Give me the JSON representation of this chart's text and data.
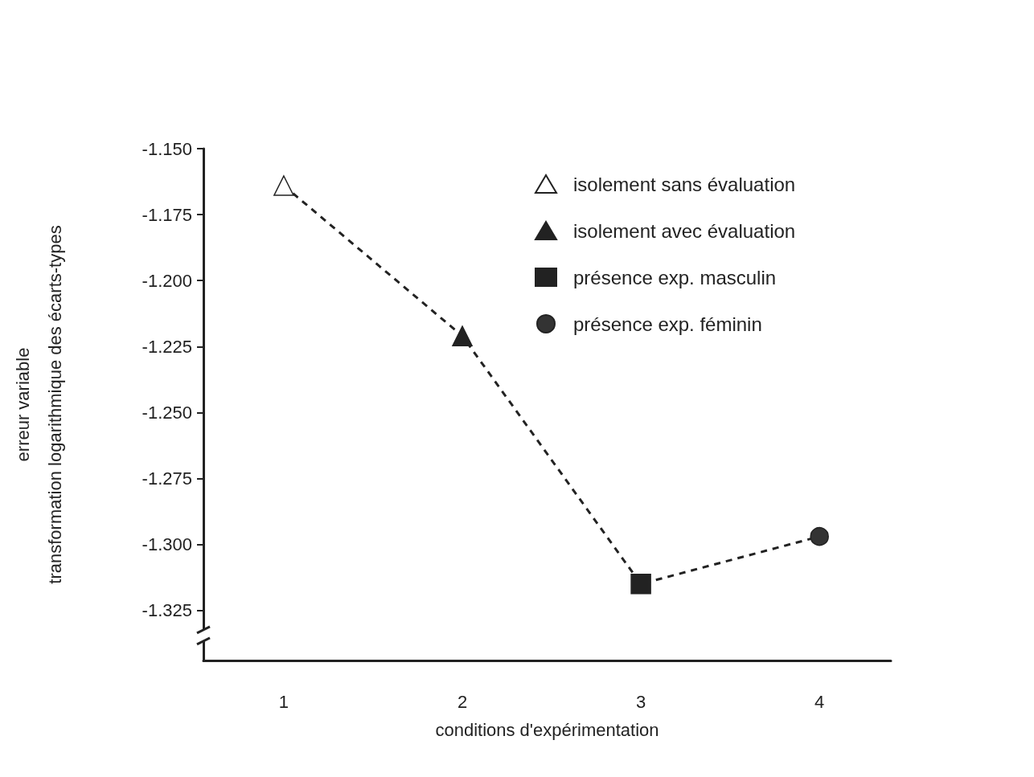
{
  "chart_data": {
    "type": "line",
    "xlabel": "conditions d'expérimentation",
    "ylabel": "erreur variable\ntransformation logarithmique des écarts-types",
    "xlim": [
      0.55,
      4.4
    ],
    "xticks": [
      1,
      2,
      3,
      4
    ],
    "ylim": [
      -1.344,
      -1.15
    ],
    "yticks": [
      {
        "value": -1.15,
        "label": "-1.150"
      },
      {
        "value": -1.175,
        "label": "-1.175"
      },
      {
        "value": -1.2,
        "label": "-1.200"
      },
      {
        "value": -1.225,
        "label": "-1.225"
      },
      {
        "value": -1.25,
        "label": "-1.250"
      },
      {
        "value": -1.275,
        "label": "-1.275"
      },
      {
        "value": -1.3,
        "label": "-1.300"
      },
      {
        "value": -1.325,
        "label": "-1.325"
      }
    ],
    "grid": false,
    "legend": "top right",
    "series": [
      {
        "color": "#222222",
        "x": [
          1,
          2,
          3,
          4
        ],
        "values": [
          -1.164,
          -1.221,
          -1.315,
          -1.297
        ],
        "marker": "none",
        "line_style": "dashed"
      },
      {
        "type": "scatter",
        "name": "isolement sans évaluation",
        "color": "#ffffff",
        "x": [
          1
        ],
        "values": [
          -1.164
        ],
        "marker": "triangle"
      },
      {
        "type": "scatter",
        "name": "isolement avec évaluation",
        "color": "#222222",
        "x": [
          2
        ],
        "values": [
          -1.221
        ],
        "marker": "triangle"
      },
      {
        "type": "scatter",
        "name": "présence exp. masculin",
        "color": "#222222",
        "x": [
          3
        ],
        "values": [
          -1.315
        ],
        "marker": "square"
      },
      {
        "type": "scatter",
        "name": "présence exp. féminin",
        "color": "#333333",
        "x": [
          4
        ],
        "values": [
          -1.297
        ],
        "marker": "circle"
      }
    ]
  }
}
